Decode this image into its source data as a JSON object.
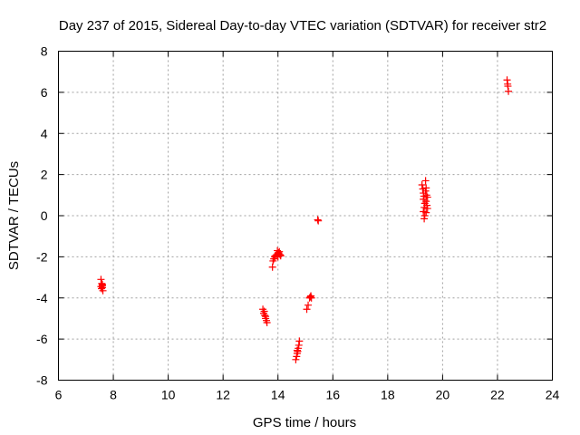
{
  "chart_data": {
    "type": "scatter",
    "title": "Day 237 of 2015, Sidereal Day-to-day VTEC variation (SDTVAR) for receiver str2",
    "xlabel": "GPS time / hours",
    "ylabel": "SDTVAR / TECUs",
    "xlim": [
      6,
      24
    ],
    "ylim": [
      -8,
      8
    ],
    "xticks": [
      "6",
      "8",
      "10",
      "12",
      "14",
      "16",
      "18",
      "20",
      "22",
      "24"
    ],
    "yticks": [
      "-8",
      "-6",
      "-4",
      "-2",
      "0",
      "2",
      "4",
      "6",
      "8"
    ],
    "grid": true,
    "marker": "+",
    "color": "#ff0000",
    "series": [
      {
        "name": "SDTVAR",
        "points": [
          [
            7.55,
            -3.1
          ],
          [
            7.58,
            -3.3
          ],
          [
            7.6,
            -3.35
          ],
          [
            7.55,
            -3.45
          ],
          [
            7.6,
            -3.5
          ],
          [
            7.57,
            -3.55
          ],
          [
            7.62,
            -3.65
          ],
          [
            7.6,
            -3.4
          ],
          [
            13.45,
            -4.55
          ],
          [
            13.5,
            -4.65
          ],
          [
            13.48,
            -4.75
          ],
          [
            13.52,
            -4.85
          ],
          [
            13.55,
            -4.9
          ],
          [
            13.55,
            -5.0
          ],
          [
            13.58,
            -5.1
          ],
          [
            13.6,
            -5.2
          ],
          [
            13.8,
            -2.5
          ],
          [
            13.82,
            -2.2
          ],
          [
            13.85,
            -2.1
          ],
          [
            13.88,
            -2.0
          ],
          [
            13.9,
            -1.95
          ],
          [
            13.95,
            -1.9
          ],
          [
            14.0,
            -1.85
          ],
          [
            14.02,
            -1.8
          ],
          [
            14.05,
            -1.75
          ],
          [
            14.08,
            -1.9
          ],
          [
            14.1,
            -1.95
          ],
          [
            13.98,
            -1.7
          ],
          [
            14.0,
            -2.0
          ],
          [
            14.03,
            -1.85
          ],
          [
            14.65,
            -7.0
          ],
          [
            14.68,
            -6.85
          ],
          [
            14.7,
            -6.7
          ],
          [
            14.72,
            -6.6
          ],
          [
            14.74,
            -6.45
          ],
          [
            14.76,
            -6.3
          ],
          [
            14.78,
            -6.1
          ],
          [
            14.7,
            -6.55
          ],
          [
            15.05,
            -4.55
          ],
          [
            15.1,
            -4.35
          ],
          [
            15.15,
            -4.0
          ],
          [
            15.18,
            -3.95
          ],
          [
            15.2,
            -3.9
          ],
          [
            15.22,
            -4.0
          ],
          [
            15.45,
            -0.2
          ],
          [
            15.47,
            -0.25
          ],
          [
            19.25,
            1.5
          ],
          [
            19.28,
            1.3
          ],
          [
            19.3,
            1.1
          ],
          [
            19.32,
            0.95
          ],
          [
            19.3,
            0.8
          ],
          [
            19.35,
            0.6
          ],
          [
            19.33,
            0.4
          ],
          [
            19.3,
            0.2
          ],
          [
            19.35,
            0.0
          ],
          [
            19.33,
            -0.15
          ],
          [
            19.38,
            1.7
          ],
          [
            19.4,
            1.35
          ],
          [
            19.42,
            1.0
          ],
          [
            19.4,
            0.7
          ],
          [
            19.45,
            0.9
          ],
          [
            19.43,
            0.5
          ],
          [
            19.45,
            0.35
          ],
          [
            19.38,
            1.2
          ],
          [
            19.4,
            0.15
          ],
          [
            22.35,
            6.6
          ],
          [
            22.37,
            6.4
          ],
          [
            22.38,
            6.3
          ],
          [
            22.4,
            6.05
          ]
        ]
      }
    ]
  }
}
